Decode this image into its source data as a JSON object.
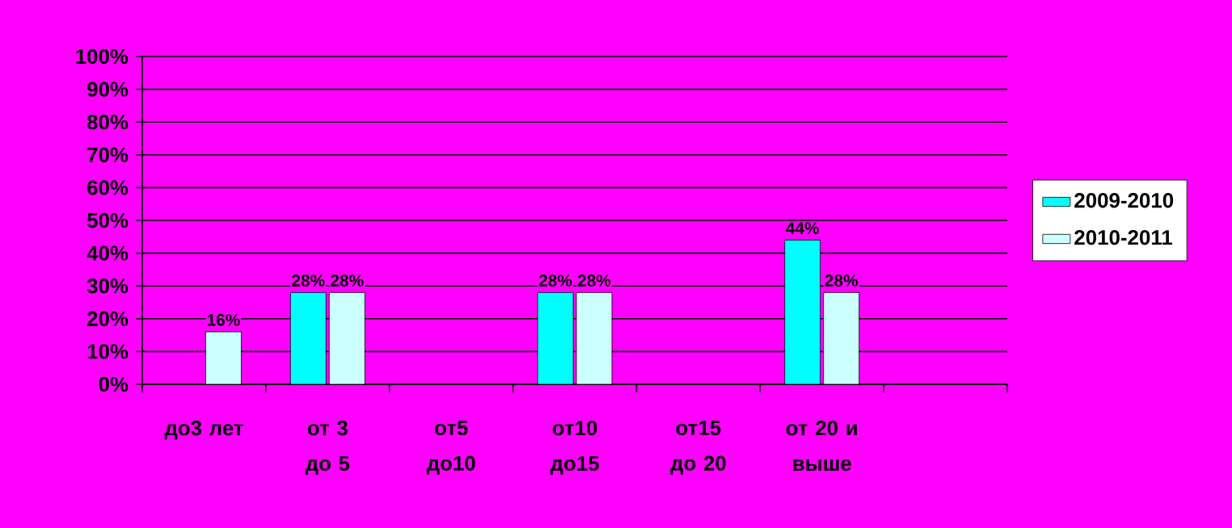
{
  "chart_data": {
    "type": "bar",
    "categories": [
      "до3 лет",
      "от 3 до 5",
      "от5 до10",
      "от10 до15",
      "от15 до 20",
      "от 20 и выше",
      null
    ],
    "series": [
      {
        "name": "2009-2010",
        "color": "#00ffff",
        "values": [
          null,
          28,
          null,
          28,
          null,
          44,
          null
        ],
        "value_labels": [
          null,
          "28%",
          null,
          "28%",
          null,
          "44%",
          null
        ]
      },
      {
        "name": "2010-2011",
        "color": "#ccffff",
        "values": [
          16,
          28,
          null,
          28,
          null,
          28,
          null
        ],
        "value_labels": [
          "16%",
          "28%",
          null,
          "28%",
          null,
          "28%",
          null
        ]
      }
    ],
    "ylim": [
      0,
      100
    ],
    "yticks": [
      {
        "value": 0,
        "label": "0%"
      },
      {
        "value": 10,
        "label": "10%"
      },
      {
        "value": 20,
        "label": "20%"
      },
      {
        "value": 30,
        "label": "30%"
      },
      {
        "value": 40,
        "label": "40%"
      },
      {
        "value": 50,
        "label": "50%"
      },
      {
        "value": 60,
        "label": "60%"
      },
      {
        "value": 70,
        "label": "70%"
      },
      {
        "value": 80,
        "label": "80%"
      },
      {
        "value": 90,
        "label": "90%"
      },
      {
        "value": 100,
        "label": "100%"
      }
    ],
    "grid": "y",
    "legend": "right"
  }
}
